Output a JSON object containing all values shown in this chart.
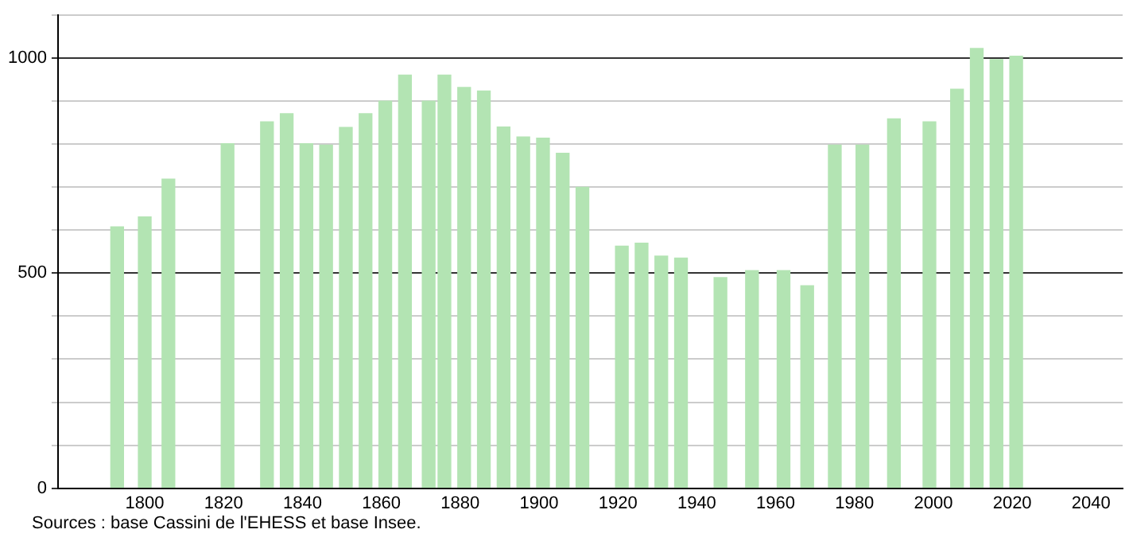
{
  "chart_data": {
    "type": "bar",
    "x": [
      1793,
      1800,
      1806,
      1821,
      1831,
      1836,
      1841,
      1846,
      1851,
      1856,
      1861,
      1866,
      1872,
      1876,
      1881,
      1886,
      1891,
      1896,
      1901,
      1906,
      1911,
      1921,
      1926,
      1931,
      1936,
      1946,
      1954,
      1962,
      1968,
      1975,
      1982,
      1990,
      1999,
      2006,
      2011,
      2016,
      2021
    ],
    "values": [
      608,
      631,
      719,
      801,
      852,
      871,
      801,
      798,
      839,
      871,
      900,
      961,
      900,
      961,
      932,
      924,
      840,
      817,
      814,
      779,
      700,
      563,
      570,
      540,
      535,
      490,
      506,
      506,
      471,
      798,
      798,
      859,
      852,
      928,
      1023,
      997,
      1005
    ],
    "color": "#b3e4b3",
    "xlim": [
      1778,
      2048
    ],
    "xticks": [
      1800,
      1820,
      1840,
      1860,
      1880,
      1900,
      1920,
      1940,
      1960,
      1980,
      2000,
      2020,
      2040
    ],
    "ylim": [
      0,
      1100
    ],
    "yticks": [
      0,
      {
        "value": 100,
        "label": null
      },
      {
        "value": 200,
        "label": null
      },
      {
        "value": 300,
        "label": null
      },
      {
        "value": 400,
        "label": null
      },
      500,
      {
        "value": 600,
        "label": null
      },
      {
        "value": 700,
        "label": null
      },
      {
        "value": 800,
        "label": null
      },
      {
        "value": 900,
        "label": null
      },
      1000,
      {
        "value": 1100,
        "label": null
      }
    ],
    "grid": "y",
    "annotations": [
      "Sources : base Cassini de l'EHESS et base Insee."
    ]
  }
}
